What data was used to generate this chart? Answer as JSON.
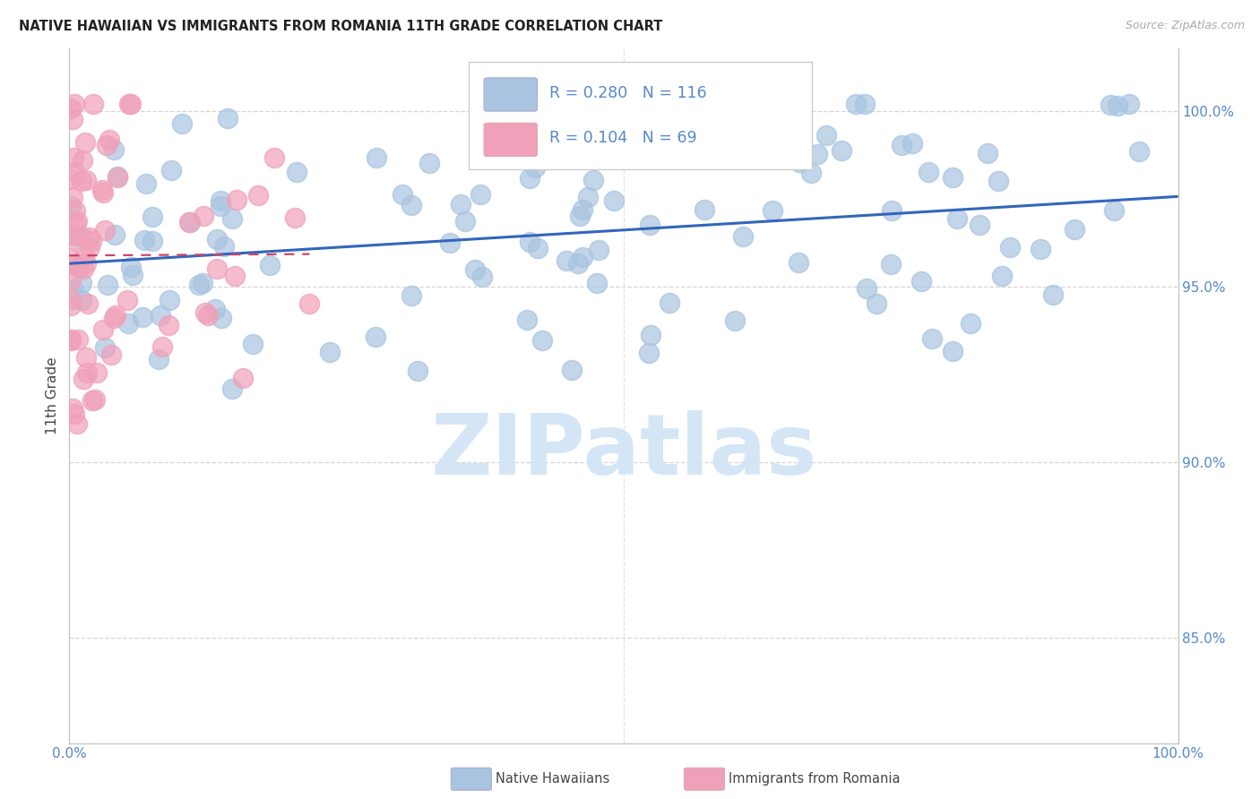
{
  "title": "NATIVE HAWAIIAN VS IMMIGRANTS FROM ROMANIA 11TH GRADE CORRELATION CHART",
  "source": "Source: ZipAtlas.com",
  "ylabel": "11th Grade",
  "R_blue": 0.28,
  "N_blue": 116,
  "R_pink": 0.104,
  "N_pink": 69,
  "blue_color": "#a8c4e0",
  "pink_color": "#f0a0b8",
  "blue_line_color": "#3366bb",
  "pink_line_color": "#cc4466",
  "background_color": "#ffffff",
  "watermark_color": "#d0e4f4",
  "axis_label_color": "#5588cc",
  "grid_color": "#cccccc",
  "xlim": [
    0.0,
    1.0
  ],
  "ylim": [
    0.82,
    1.018
  ],
  "ytick_values": [
    0.85,
    0.9,
    0.95,
    1.0
  ],
  "ytick_labels": [
    "85.0%",
    "90.0%",
    "95.0%",
    "100.0%"
  ]
}
